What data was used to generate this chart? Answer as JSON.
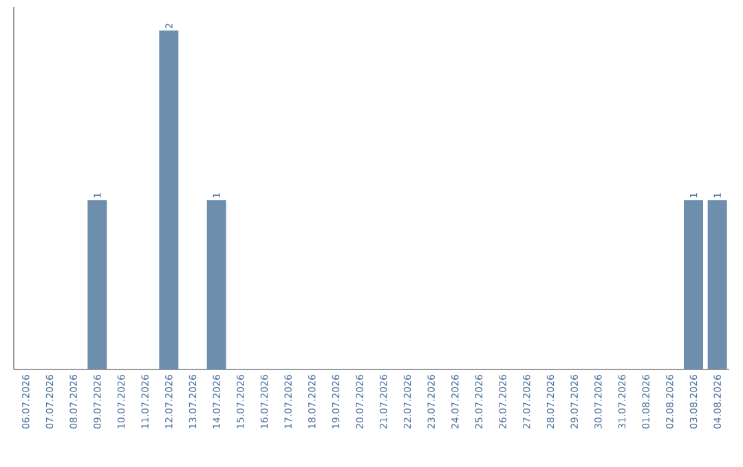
{
  "chart_data": {
    "type": "bar",
    "categories": [
      "06.07.2026",
      "07.07.2026",
      "08.07.2026",
      "09.07.2026",
      "10.07.2026",
      "11.07.2026",
      "12.07.2026",
      "13.07.2026",
      "14.07.2026",
      "15.07.2026",
      "16.07.2026",
      "17.07.2026",
      "18.07.2026",
      "19.07.2026",
      "20.07.2026",
      "21.07.2026",
      "22.07.2026",
      "23.07.2026",
      "24.07.2026",
      "25.07.2026",
      "26.07.2026",
      "27.07.2026",
      "28.07.2026",
      "29.07.2026",
      "30.07.2026",
      "31.07.2026",
      "01.08.2026",
      "02.08.2026",
      "03.08.2026",
      "04.08.2026"
    ],
    "values": [
      0,
      0,
      0,
      1,
      0,
      0,
      2,
      0,
      1,
      0,
      0,
      0,
      0,
      0,
      0,
      0,
      0,
      0,
      0,
      0,
      0,
      0,
      0,
      0,
      0,
      0,
      0,
      0,
      1,
      1
    ],
    "value_labels": [
      null,
      null,
      null,
      "1",
      null,
      null,
      "2",
      null,
      "1",
      null,
      null,
      null,
      null,
      null,
      null,
      null,
      null,
      null,
      null,
      null,
      null,
      null,
      null,
      null,
      null,
      null,
      null,
      null,
      "1",
      "1"
    ],
    "color": "#6d8fad"
  }
}
